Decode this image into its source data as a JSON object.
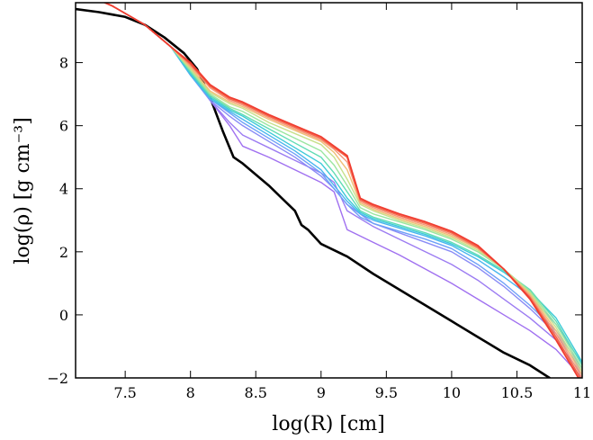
{
  "chart_data": {
    "type": "line",
    "title": "",
    "xlabel": "log(R) [cm]",
    "ylabel": "log(ρ) [g cm⁻³]",
    "xlim": [
      7.12,
      11.0
    ],
    "ylim": [
      -2.0,
      9.9
    ],
    "xticks": [
      7.5,
      8,
      8.5,
      9,
      9.5,
      10,
      10.5,
      11
    ],
    "xtick_labels": [
      "7.5",
      "8",
      "8.5",
      "9",
      "9.5",
      "10",
      "10.5",
      "11"
    ],
    "yticks": [
      -2,
      0,
      2,
      4,
      6,
      8
    ],
    "ytick_labels": [
      "−2",
      "0",
      "2",
      "4",
      "6",
      "8"
    ],
    "grid": false,
    "legend": "none",
    "series": [
      {
        "color": "#000000",
        "width": 2.6,
        "x": [
          7.12,
          7.3,
          7.5,
          7.65,
          7.8,
          7.95,
          8.05,
          8.15,
          8.25,
          8.33,
          8.4,
          8.5,
          8.6,
          8.7,
          8.8,
          8.85,
          8.9,
          9.0,
          9.1,
          9.2,
          9.4,
          9.6,
          9.8,
          10.0,
          10.2,
          10.4,
          10.6,
          10.75
        ],
        "y": [
          9.7,
          9.6,
          9.45,
          9.2,
          8.8,
          8.3,
          7.8,
          6.9,
          5.8,
          5.0,
          4.8,
          4.45,
          4.1,
          3.7,
          3.3,
          2.85,
          2.7,
          2.25,
          2.05,
          1.85,
          1.3,
          0.8,
          0.3,
          -0.2,
          -0.7,
          -1.2,
          -1.6,
          -2.0
        ]
      },
      {
        "color": "#a070f0",
        "width": 1.4,
        "x": [
          7.12,
          7.4,
          7.65,
          7.85,
          8.0,
          8.15,
          8.3,
          8.4,
          8.6,
          8.8,
          9.0,
          9.1,
          9.2,
          9.4,
          9.6,
          9.8,
          10.0,
          10.2,
          10.4,
          10.6,
          10.8,
          11.0
        ],
        "y": [
          10.3,
          9.8,
          9.2,
          8.5,
          7.7,
          6.8,
          6.0,
          5.35,
          5.0,
          4.6,
          4.2,
          3.9,
          2.7,
          2.3,
          1.9,
          1.45,
          1.0,
          0.5,
          0.0,
          -0.5,
          -1.1,
          -2.0
        ]
      },
      {
        "color": "#9c7cf2",
        "width": 1.4,
        "x": [
          7.12,
          7.4,
          7.65,
          7.85,
          8.0,
          8.15,
          8.3,
          8.4,
          8.6,
          8.8,
          9.0,
          9.1,
          9.2,
          9.4,
          9.6,
          9.8,
          10.0,
          10.2,
          10.4,
          10.6,
          10.8,
          11.0
        ],
        "y": [
          10.3,
          9.8,
          9.2,
          8.5,
          7.65,
          6.8,
          6.1,
          5.7,
          5.3,
          4.9,
          4.5,
          4.2,
          3.3,
          2.8,
          2.4,
          2.0,
          1.6,
          1.1,
          0.5,
          -0.1,
          -0.8,
          -1.9
        ]
      },
      {
        "color": "#8a8cf6",
        "width": 1.4,
        "x": [
          7.12,
          7.4,
          7.65,
          7.85,
          8.0,
          8.15,
          8.3,
          8.4,
          8.6,
          8.8,
          9.0,
          9.1,
          9.2,
          9.4,
          9.6,
          9.8,
          10.0,
          10.2,
          10.4,
          10.6,
          10.8,
          11.0
        ],
        "y": [
          10.3,
          9.8,
          9.2,
          8.5,
          7.6,
          6.8,
          6.3,
          6.0,
          5.5,
          5.0,
          4.4,
          4.0,
          3.5,
          2.9,
          2.6,
          2.3,
          2.0,
          1.5,
          0.9,
          0.2,
          -0.6,
          -1.8
        ]
      },
      {
        "color": "#6ea0f8",
        "width": 1.4,
        "x": [
          7.12,
          7.4,
          7.65,
          7.85,
          8.0,
          8.15,
          8.3,
          8.4,
          8.6,
          8.8,
          9.0,
          9.1,
          9.2,
          9.3,
          9.4,
          9.6,
          9.8,
          10.0,
          10.2,
          10.4,
          10.6,
          10.8,
          11.0
        ],
        "y": [
          10.3,
          9.8,
          9.2,
          8.5,
          7.6,
          6.85,
          6.4,
          6.1,
          5.6,
          5.1,
          4.5,
          4.0,
          3.5,
          3.1,
          2.9,
          2.65,
          2.4,
          2.1,
          1.6,
          1.0,
          0.3,
          -0.5,
          -1.7
        ]
      },
      {
        "color": "#4ab6ee",
        "width": 1.4,
        "x": [
          7.12,
          7.4,
          7.65,
          7.85,
          8.0,
          8.15,
          8.3,
          8.4,
          8.6,
          8.8,
          9.0,
          9.1,
          9.2,
          9.3,
          9.4,
          9.6,
          9.8,
          10.0,
          10.2,
          10.4,
          10.6,
          10.8,
          11.0
        ],
        "y": [
          10.3,
          9.8,
          9.2,
          8.5,
          7.6,
          6.85,
          6.45,
          6.2,
          5.7,
          5.2,
          4.6,
          4.1,
          3.6,
          3.2,
          3.0,
          2.75,
          2.5,
          2.2,
          1.75,
          1.2,
          0.6,
          -0.3,
          -1.55
        ]
      },
      {
        "color": "#3ccad8",
        "width": 1.4,
        "x": [
          7.12,
          7.4,
          7.65,
          7.85,
          8.0,
          8.15,
          8.3,
          8.4,
          8.6,
          8.8,
          9.0,
          9.1,
          9.2,
          9.3,
          9.4,
          9.6,
          9.8,
          10.0,
          10.2,
          10.4,
          10.6,
          10.8,
          11.0
        ],
        "y": [
          10.3,
          9.8,
          9.2,
          8.5,
          7.65,
          6.9,
          6.5,
          6.3,
          5.8,
          5.3,
          4.8,
          4.3,
          3.7,
          3.25,
          3.05,
          2.8,
          2.55,
          2.25,
          1.85,
          1.35,
          0.75,
          -0.1,
          -1.5
        ]
      },
      {
        "color": "#60dcb4",
        "width": 1.4,
        "x": [
          7.12,
          7.4,
          7.65,
          7.85,
          8.0,
          8.15,
          8.3,
          8.4,
          8.6,
          8.8,
          9.0,
          9.1,
          9.2,
          9.3,
          9.4,
          9.6,
          9.8,
          10.0,
          10.2,
          10.4,
          10.6,
          10.8,
          11.0
        ],
        "y": [
          10.3,
          9.8,
          9.2,
          8.5,
          7.7,
          6.95,
          6.55,
          6.35,
          5.9,
          5.45,
          5.0,
          4.5,
          3.9,
          3.3,
          3.1,
          2.85,
          2.6,
          2.3,
          1.9,
          1.4,
          0.8,
          -0.2,
          -1.6
        ]
      },
      {
        "color": "#9ae6a0",
        "width": 1.4,
        "x": [
          7.12,
          7.4,
          7.65,
          7.85,
          8.0,
          8.15,
          8.3,
          8.4,
          8.6,
          8.8,
          9.0,
          9.1,
          9.2,
          9.3,
          9.4,
          9.6,
          9.8,
          10.0,
          10.2,
          10.4,
          10.6,
          10.8,
          11.0
        ],
        "y": [
          10.3,
          9.8,
          9.2,
          8.5,
          7.75,
          7.0,
          6.6,
          6.45,
          6.0,
          5.6,
          5.2,
          4.75,
          4.1,
          3.4,
          3.2,
          2.95,
          2.7,
          2.4,
          2.0,
          1.45,
          0.75,
          -0.3,
          -1.7
        ]
      },
      {
        "color": "#c8e08c",
        "width": 1.4,
        "x": [
          7.12,
          7.4,
          7.65,
          7.85,
          8.0,
          8.15,
          8.3,
          8.4,
          8.6,
          8.8,
          9.0,
          9.1,
          9.2,
          9.3,
          9.4,
          9.6,
          9.8,
          10.0,
          10.2,
          10.4,
          10.6,
          10.8,
          11.0
        ],
        "y": [
          10.3,
          9.8,
          9.2,
          8.5,
          7.8,
          7.05,
          6.7,
          6.55,
          6.1,
          5.75,
          5.4,
          5.0,
          4.3,
          3.5,
          3.3,
          3.0,
          2.75,
          2.45,
          2.05,
          1.45,
          0.7,
          -0.4,
          -1.8
        ]
      },
      {
        "color": "#f0c078",
        "width": 1.4,
        "x": [
          7.12,
          7.4,
          7.65,
          7.85,
          8.0,
          8.15,
          8.3,
          8.4,
          8.6,
          8.8,
          9.0,
          9.1,
          9.2,
          9.3,
          9.4,
          9.6,
          9.8,
          10.0,
          10.2,
          10.4,
          10.6,
          10.8,
          11.0
        ],
        "y": [
          10.3,
          9.8,
          9.2,
          8.5,
          7.85,
          7.1,
          6.75,
          6.6,
          6.2,
          5.85,
          5.5,
          5.15,
          4.6,
          3.55,
          3.35,
          3.05,
          2.8,
          2.5,
          2.1,
          1.45,
          0.65,
          -0.5,
          -1.9
        ]
      },
      {
        "color": "#f6987a",
        "width": 1.4,
        "x": [
          7.12,
          7.4,
          7.65,
          7.85,
          8.0,
          8.15,
          8.3,
          8.4,
          8.6,
          8.8,
          9.0,
          9.1,
          9.2,
          9.3,
          9.4,
          9.6,
          9.8,
          10.0,
          10.2,
          10.4,
          10.6,
          10.8,
          11.0
        ],
        "y": [
          10.3,
          9.8,
          9.2,
          8.5,
          7.9,
          7.2,
          6.8,
          6.65,
          6.25,
          5.9,
          5.55,
          5.25,
          4.85,
          3.6,
          3.4,
          3.1,
          2.85,
          2.55,
          2.12,
          1.45,
          0.6,
          -0.6,
          -2.0
        ]
      },
      {
        "color": "#f46448",
        "width": 1.6,
        "x": [
          7.12,
          7.4,
          7.65,
          7.85,
          8.0,
          8.15,
          8.3,
          8.4,
          8.6,
          8.8,
          9.0,
          9.1,
          9.2,
          9.3,
          9.4,
          9.6,
          9.8,
          10.0,
          10.2,
          10.4,
          10.6,
          10.8,
          11.0
        ],
        "y": [
          10.3,
          9.8,
          9.2,
          8.5,
          7.95,
          7.25,
          6.85,
          6.7,
          6.3,
          5.95,
          5.6,
          5.3,
          5.0,
          3.65,
          3.45,
          3.15,
          2.9,
          2.6,
          2.15,
          1.45,
          0.55,
          -0.7,
          -2.1
        ]
      },
      {
        "color": "#f03c30",
        "width": 1.8,
        "x": [
          7.12,
          7.4,
          7.65,
          7.85,
          8.0,
          8.15,
          8.3,
          8.4,
          8.6,
          8.8,
          9.0,
          9.1,
          9.2,
          9.3,
          9.4,
          9.6,
          9.8,
          10.0,
          10.2,
          10.4,
          10.6,
          10.8,
          11.0
        ],
        "y": [
          10.3,
          9.8,
          9.2,
          8.5,
          8.0,
          7.3,
          6.9,
          6.75,
          6.35,
          6.0,
          5.65,
          5.35,
          5.05,
          3.7,
          3.5,
          3.2,
          2.95,
          2.65,
          2.2,
          1.45,
          0.5,
          -0.8,
          -2.2
        ]
      }
    ]
  }
}
